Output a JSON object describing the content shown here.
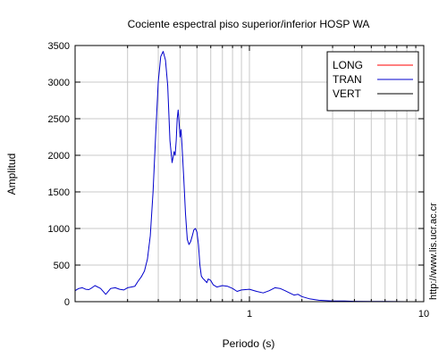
{
  "chart_data": {
    "type": "line",
    "title": "Cociente espectral piso superior/inferior  HOSP WA",
    "xlabel": "Periodo (s)",
    "ylabel": "Amplitud",
    "xscale": "log",
    "xlim": [
      0.1,
      10
    ],
    "ylim": [
      0,
      3500
    ],
    "xticks": [
      {
        "value": 1,
        "label": "1"
      },
      {
        "value": 10,
        "label": "10"
      }
    ],
    "yticks": [
      {
        "value": 0,
        "label": "0"
      },
      {
        "value": 500,
        "label": "500"
      },
      {
        "value": 1000,
        "label": "1000"
      },
      {
        "value": 1500,
        "label": "1500"
      },
      {
        "value": 2000,
        "label": "2000"
      },
      {
        "value": 2500,
        "label": "2500"
      },
      {
        "value": 3000,
        "label": "3000"
      },
      {
        "value": 3500,
        "label": "3500"
      }
    ],
    "grid": true,
    "legend_position": "top-right",
    "series": [
      {
        "name": "LONG",
        "color": "#ff0000",
        "x": [
          0.31,
          0.33,
          0.35
        ],
        "y": [
          0,
          0,
          0
        ]
      },
      {
        "name": "TRAN",
        "color": "#0000cc",
        "x": [
          0.1,
          0.105,
          0.11,
          0.115,
          0.12,
          0.125,
          0.13,
          0.14,
          0.15,
          0.16,
          0.17,
          0.18,
          0.19,
          0.2,
          0.21,
          0.22,
          0.23,
          0.24,
          0.25,
          0.26,
          0.27,
          0.28,
          0.29,
          0.3,
          0.31,
          0.32,
          0.33,
          0.34,
          0.35,
          0.36,
          0.37,
          0.375,
          0.38,
          0.385,
          0.39,
          0.395,
          0.4,
          0.405,
          0.41,
          0.42,
          0.43,
          0.44,
          0.45,
          0.46,
          0.47,
          0.48,
          0.49,
          0.5,
          0.51,
          0.52,
          0.53,
          0.54,
          0.55,
          0.56,
          0.57,
          0.58,
          0.6,
          0.62,
          0.65,
          0.7,
          0.75,
          0.8,
          0.85,
          0.9,
          1.0,
          1.1,
          1.2,
          1.3,
          1.4,
          1.5,
          1.6,
          1.7,
          1.8,
          1.9,
          2.0,
          2.2,
          2.5,
          3.0,
          3.5,
          4.0,
          5.0,
          6.0,
          7.0,
          8.0,
          9.0,
          10.0
        ],
        "y": [
          150,
          180,
          190,
          170,
          165,
          190,
          220,
          180,
          100,
          180,
          190,
          170,
          160,
          190,
          200,
          210,
          280,
          340,
          420,
          580,
          900,
          1500,
          2300,
          3000,
          3350,
          3420,
          3300,
          2950,
          2200,
          1900,
          2050,
          2000,
          2200,
          2500,
          2620,
          2450,
          2250,
          2350,
          2150,
          1700,
          1200,
          850,
          780,
          820,
          900,
          980,
          1000,
          950,
          780,
          500,
          350,
          320,
          300,
          280,
          260,
          310,
          290,
          230,
          200,
          220,
          210,
          180,
          140,
          160,
          170,
          140,
          120,
          150,
          190,
          180,
          150,
          120,
          90,
          100,
          70,
          40,
          20,
          10,
          8,
          5,
          3,
          2,
          1,
          0,
          0,
          0
        ]
      },
      {
        "name": "VERT",
        "color": "#000000",
        "x": [],
        "y": []
      }
    ]
  },
  "side_note": "http://www.lis.ucr.ac.cr"
}
